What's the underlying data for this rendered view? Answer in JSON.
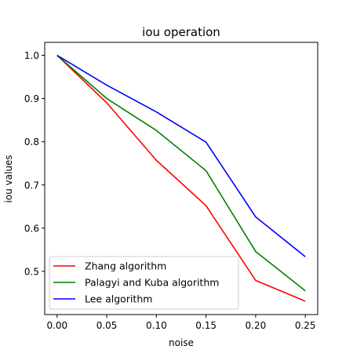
{
  "chart_data": {
    "type": "line",
    "title": "iou operation",
    "xlabel": "noise",
    "ylabel": "iou values",
    "x": [
      0.0,
      0.05,
      0.1,
      0.15,
      0.2,
      0.25
    ],
    "xticks": [
      "0.00",
      "0.05",
      "0.10",
      "0.15",
      "0.20",
      "0.25"
    ],
    "yticks": [
      "0.5",
      "0.6",
      "0.7",
      "0.8",
      "0.9",
      "1.0"
    ],
    "xlim": [
      -0.0125,
      0.2625
    ],
    "ylim": [
      0.4,
      1.03
    ],
    "grid": false,
    "legend_position": "lower-left",
    "series": [
      {
        "name": "Zhang algorithm",
        "color": "#ff0000",
        "values": [
          1.0,
          0.89,
          0.757,
          0.652,
          0.479,
          0.431
        ]
      },
      {
        "name": "Palagyi and Kuba algorithm",
        "color": "#008000",
        "values": [
          1.0,
          0.9,
          0.826,
          0.733,
          0.546,
          0.455
        ]
      },
      {
        "name": "Lee algorithm",
        "color": "#0000ff",
        "values": [
          1.0,
          0.931,
          0.869,
          0.799,
          0.626,
          0.534
        ]
      }
    ]
  }
}
